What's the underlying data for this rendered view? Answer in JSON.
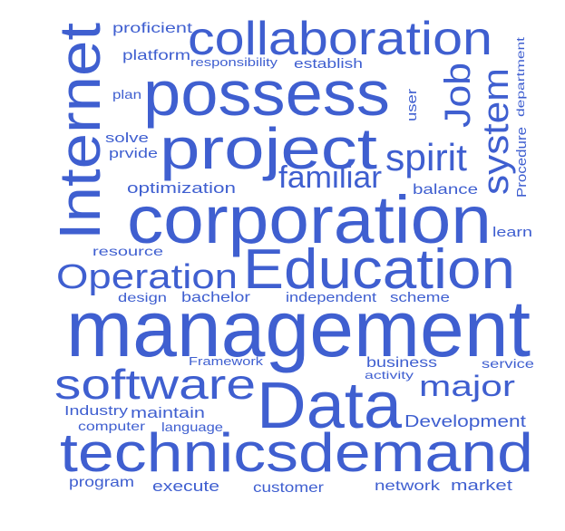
{
  "cloud": {
    "color": "#3f5fd0",
    "words": [
      {
        "text": "management"
      },
      {
        "text": "corporation"
      },
      {
        "text": "Data"
      },
      {
        "text": "technicsdemand"
      },
      {
        "text": "Education"
      },
      {
        "text": "possess"
      },
      {
        "text": "project"
      },
      {
        "text": "collaboration"
      },
      {
        "text": "Internet"
      },
      {
        "text": "software"
      },
      {
        "text": "Operation"
      },
      {
        "text": "system"
      },
      {
        "text": "Job"
      },
      {
        "text": "spirit"
      },
      {
        "text": "familiar"
      },
      {
        "text": "major"
      },
      {
        "text": "Development"
      },
      {
        "text": "proficient"
      },
      {
        "text": "platform"
      },
      {
        "text": "responsibility"
      },
      {
        "text": "establish"
      },
      {
        "text": "plan"
      },
      {
        "text": "solve"
      },
      {
        "text": "prvide"
      },
      {
        "text": "user"
      },
      {
        "text": "department"
      },
      {
        "text": "Procedure"
      },
      {
        "text": "optimization"
      },
      {
        "text": "balance"
      },
      {
        "text": "learn"
      },
      {
        "text": "resource"
      },
      {
        "text": "design"
      },
      {
        "text": "bachelor"
      },
      {
        "text": "independent"
      },
      {
        "text": "scheme"
      },
      {
        "text": "Framework"
      },
      {
        "text": "business"
      },
      {
        "text": "activity"
      },
      {
        "text": "service"
      },
      {
        "text": "Industry"
      },
      {
        "text": "maintain"
      },
      {
        "text": "computer"
      },
      {
        "text": "language"
      },
      {
        "text": "program"
      },
      {
        "text": "execute"
      },
      {
        "text": "customer"
      },
      {
        "text": "network"
      },
      {
        "text": "market"
      }
    ]
  }
}
